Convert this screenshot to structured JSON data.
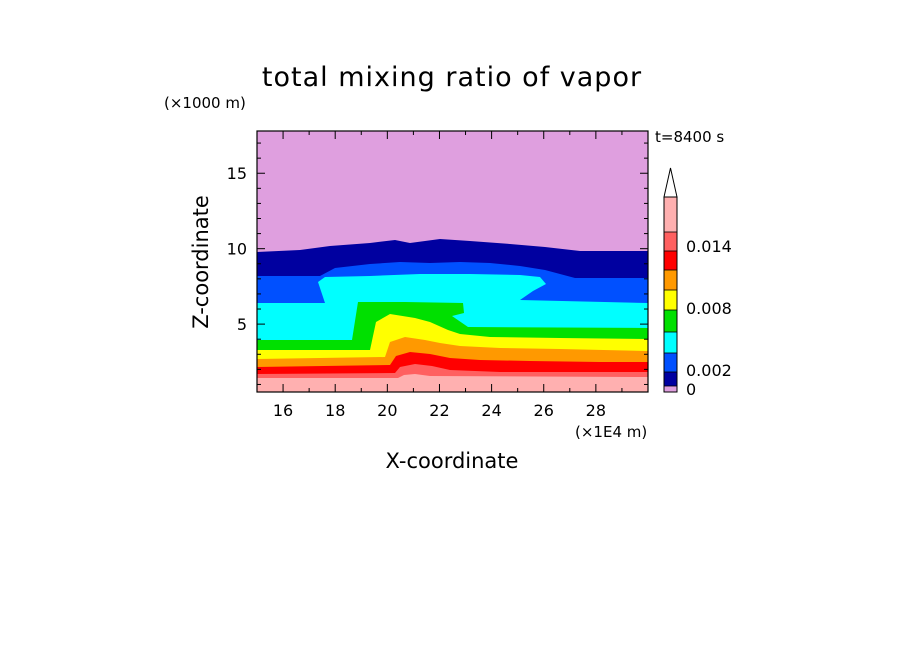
{
  "chart_data": {
    "type": "heatmap",
    "title": "total mixing ratio of vapor",
    "xlabel": "X-coordinate",
    "ylabel": "Z-coordinate",
    "x_unit": "(×1E4 m)",
    "y_unit": "(×1000 m)",
    "time_label": "t=8400 s",
    "xlim": [
      15,
      30
    ],
    "ylim": [
      0.5,
      17.8
    ],
    "x_ticks": [
      16,
      18,
      20,
      22,
      24,
      26,
      28
    ],
    "y_ticks": [
      5,
      10,
      15
    ],
    "colorbar": {
      "levels": [
        0,
        0.001,
        0.002,
        0.004,
        0.006,
        0.008,
        0.01,
        0.012,
        0.014,
        0.016
      ],
      "tick_values": [
        0,
        0.002,
        0.008,
        0.014
      ],
      "tick_labels": [
        "0",
        "0.002",
        "0.008",
        "0.014"
      ],
      "colors": [
        "#df9fdf",
        "#0000a0",
        "#0050ff",
        "#00ffff",
        "#00e000",
        "#ffff00",
        "#ff9900",
        "#ff0000",
        "#ff6060",
        "#ffb0b0"
      ],
      "extend": "max"
    },
    "layers": [
      {
        "level": "0.014+",
        "color": "#ffb0b0",
        "z_top_right": 1.3
      },
      {
        "level": "0.012",
        "color": "#ff6060",
        "z_top_right": 1.9
      },
      {
        "level": "0.010",
        "color": "#ff0000",
        "z_top_right": 2.4
      },
      {
        "level": "0.008",
        "color": "#ff9900",
        "z_top_right": 3.2
      },
      {
        "level": "0.006",
        "color": "#ffff00",
        "z_top_right": 3.8
      },
      {
        "level": "0.004",
        "color": "#00e000",
        "z_top_right": 4.8
      },
      {
        "level": "0.002",
        "color": "#00ffff",
        "z_top_right": 6.0
      },
      {
        "level": "0.001",
        "color": "#0050ff",
        "z_top_right": 7.8
      },
      {
        "level": "0",
        "color": "#0000a0",
        "z_top_right": 9.7
      }
    ]
  }
}
